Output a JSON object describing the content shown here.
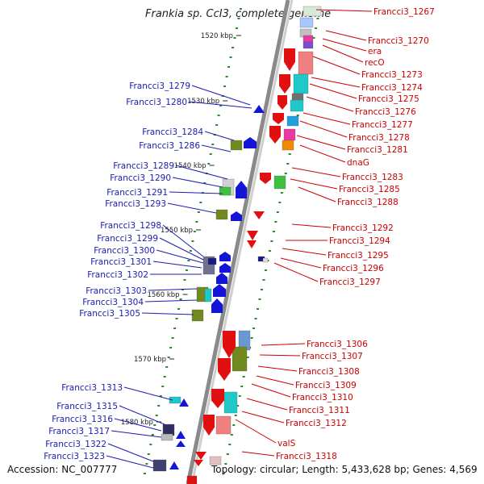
{
  "title": "Frankia sp. CcI3, complete genome",
  "footer": {
    "accession": "Accession: NC_007777",
    "summary": "Topology: circular; Length: 5,433,628 bp; Genes: 4,569"
  },
  "colors": {
    "forward": "#1515d8",
    "reverse": "#e01010",
    "left_label": "#1b1bb0",
    "right_label": "#cc0000",
    "backbone": "#8a8a8a",
    "tick": "#2a8a2a"
  },
  "scale_marks": [
    {
      "label": "1520 kbp"
    },
    {
      "label": "1530 kbp"
    },
    {
      "label": "1540 kbp"
    },
    {
      "label": "1550 kbp"
    },
    {
      "label": "1560 kbp"
    },
    {
      "label": "1570 kbp"
    },
    {
      "label": "1580 kbp"
    }
  ],
  "labels_right": [
    "Francci3_1267",
    "Francci3_1270",
    "era",
    "recO",
    "Francci3_1273",
    "Francci3_1274",
    "Francci3_1275",
    "Francci3_1276",
    "Francci3_1277",
    "Francci3_1278",
    "Francci3_1281",
    "dnaG",
    "Francci3_1283",
    "Francci3_1285",
    "Francci3_1288",
    "Francci3_1292",
    "Francci3_1294",
    "Francci3_1295",
    "Francci3_1296",
    "Francci3_1297",
    "Francci3_1306",
    "Francci3_1307",
    "Francci3_1308",
    "Francci3_1309",
    "Francci3_1310",
    "Francci3_1311",
    "Francci3_1312",
    "valS",
    "Francci3_1318"
  ],
  "labels_left": [
    "Francci3_1279",
    "Francci3_1280",
    "Francci3_1284",
    "Francci3_1286",
    "Francci3_1289",
    "Francci3_1290",
    "Francci3_1291",
    "Francci3_1293",
    "Francci3_1298",
    "Francci3_1299",
    "Francci3_1300",
    "Francci3_1301",
    "Francci3_1302",
    "Francci3_1303",
    "Francci3_1304",
    "Francci3_1305",
    "Francci3_1313",
    "Francci3_1315",
    "Francci3_1316",
    "Francci3_1317",
    "Francci3_1322",
    "Francci3_1323"
  ]
}
